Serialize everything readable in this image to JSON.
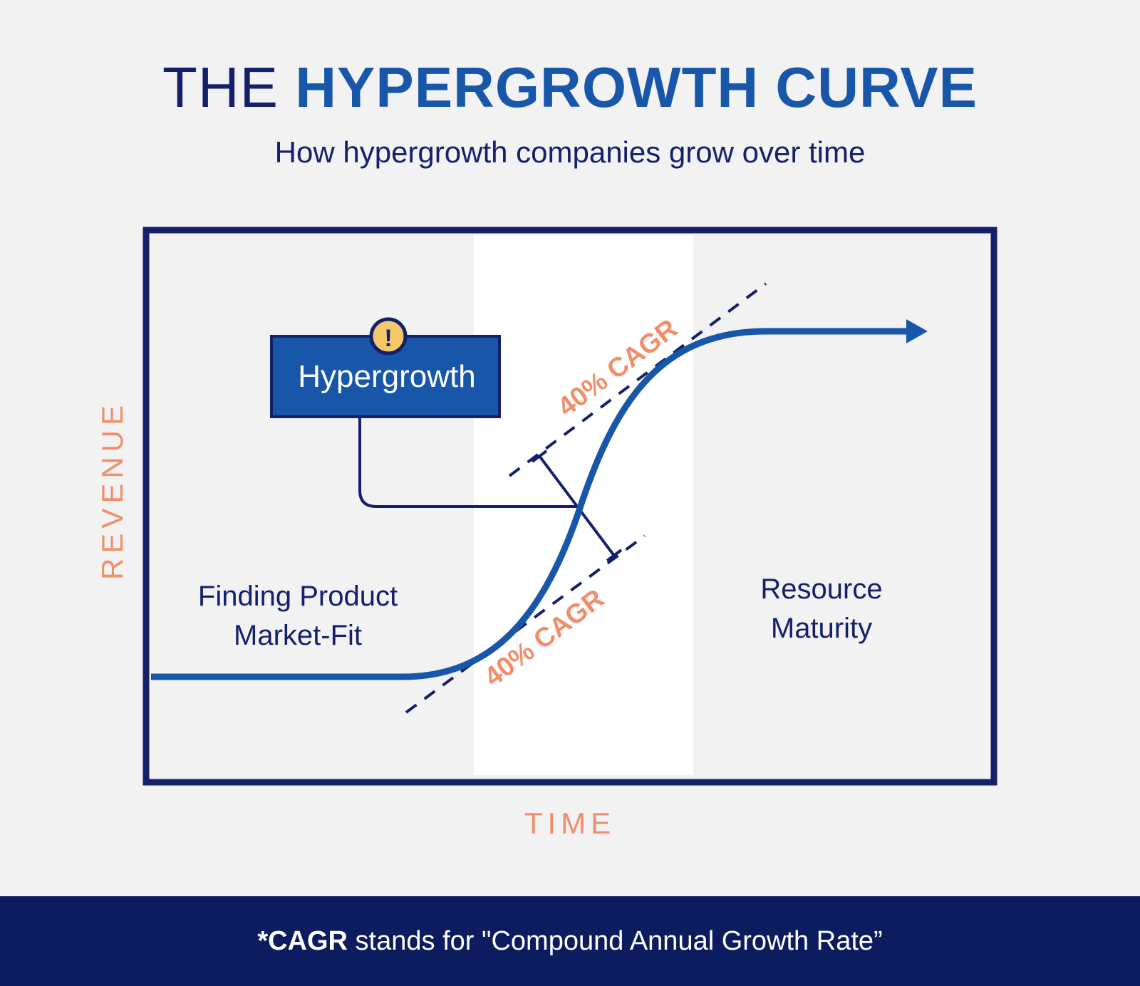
{
  "title": {
    "light": "THE",
    "bold": "HYPERGROWTH CURVE"
  },
  "subtitle": "How hypergrowth companies grow over time",
  "axes": {
    "y_label": "REVENUE",
    "x_label": "TIME"
  },
  "callout": {
    "label": "Hypergrowth",
    "badge": "!"
  },
  "phases": {
    "left": [
      "Finding Product",
      "Market-Fit"
    ],
    "right": [
      "Resource",
      "Maturity"
    ]
  },
  "tangents": {
    "upper_label": "40% CAGR",
    "lower_label": "40% CAGR"
  },
  "footer": {
    "bold": "*CAGR",
    "rest": " stands for \"Compound Annual Growth Rate”"
  },
  "colors": {
    "navy": "#14206a",
    "blue": "#1756a9",
    "salmon": "#ef8f6c",
    "badge": "#f5c96b",
    "footer_bg": "#0c1c5e"
  }
}
